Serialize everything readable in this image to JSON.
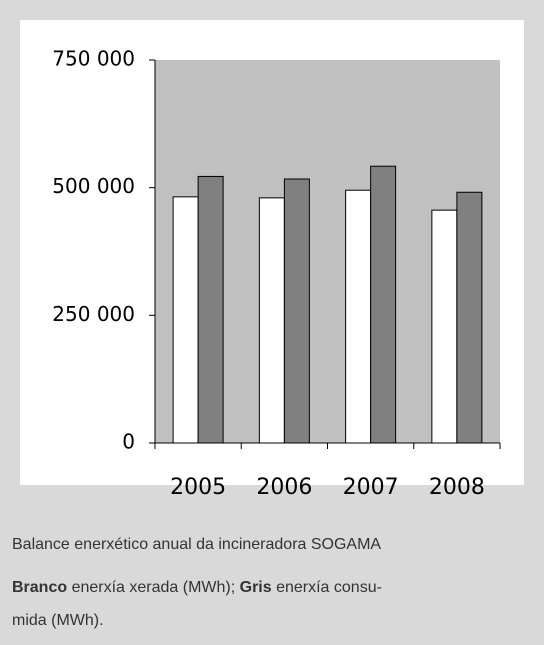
{
  "chart_data": {
    "type": "bar",
    "categories": [
      "2005",
      "2006",
      "2007",
      "2008"
    ],
    "series": [
      {
        "name": "Branco",
        "color": "#ffffff",
        "values": [
          482000,
          480000,
          495000,
          456000
        ]
      },
      {
        "name": "Gris",
        "color": "#808080",
        "values": [
          522000,
          517000,
          542000,
          491000
        ]
      }
    ],
    "ylim": [
      0,
      750000
    ],
    "yticks": [
      0,
      {
        "value": 250000,
        "label": "250 000"
      },
      {
        "value": 500000,
        "label": "500 000"
      },
      {
        "value": 750000,
        "label": "750 000"
      }
    ],
    "plot_background": "#c0c0c0"
  },
  "caption": {
    "title": "Balance enerxético anual da incineradora SOGAMA",
    "legend_texts": [
      " enerxía xerada (MWh); ",
      " enerxía consu-"
    ],
    "last_line": "mida (MWh)."
  }
}
